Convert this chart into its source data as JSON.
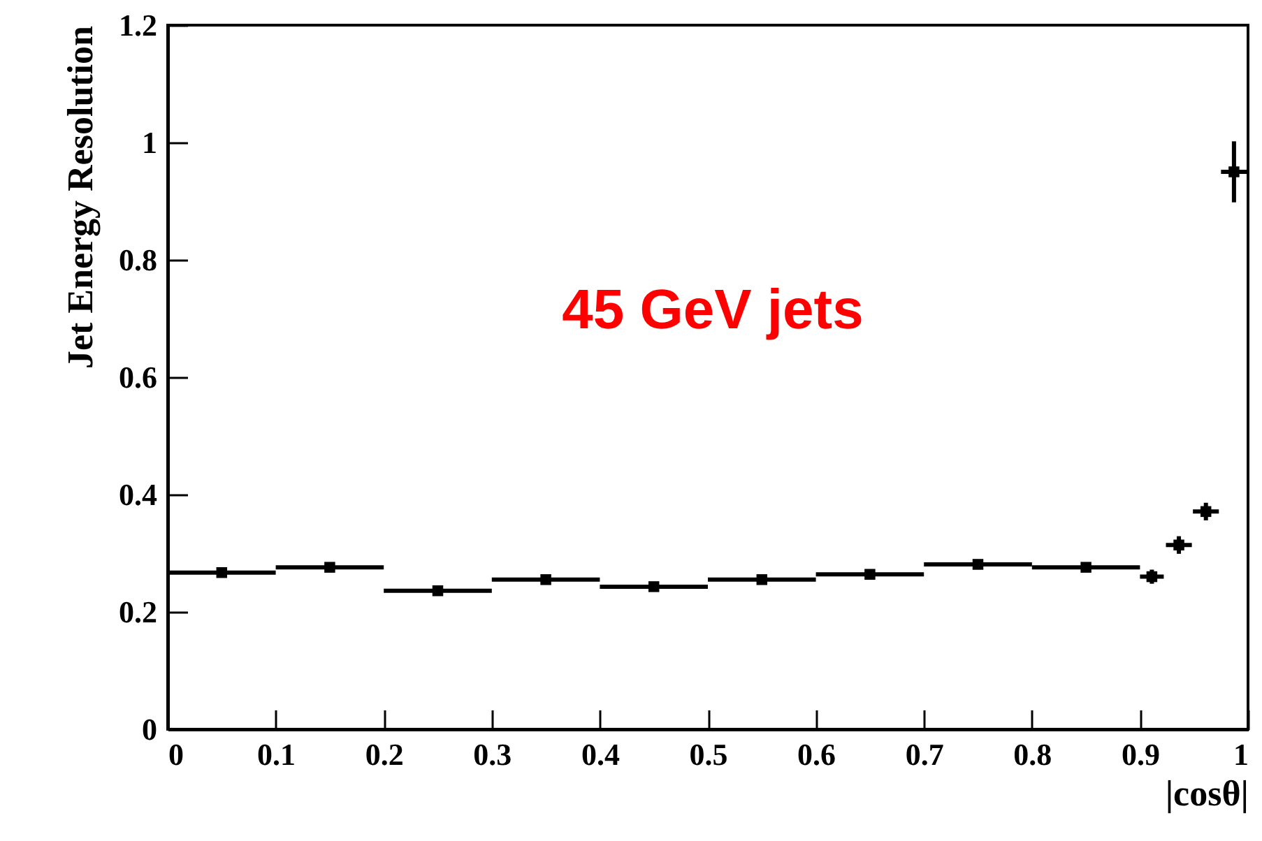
{
  "chart_data": {
    "type": "scatter",
    "xlabel": "|cosθ|",
    "ylabel": "Jet Energy Resolution",
    "annotations": [
      "45 GeV jets"
    ],
    "x": [
      0.05,
      0.15,
      0.25,
      0.35,
      0.45,
      0.55,
      0.65,
      0.75,
      0.85,
      0.911,
      0.936,
      0.961,
      0.987
    ],
    "values": [
      0.267,
      0.276,
      0.236,
      0.255,
      0.243,
      0.255,
      0.264,
      0.281,
      0.276,
      0.26,
      0.314,
      0.371,
      0.95
    ],
    "xerrors": [
      0.05,
      0.05,
      0.05,
      0.05,
      0.05,
      0.05,
      0.05,
      0.05,
      0.05,
      0.011,
      0.012,
      0.012,
      0.012
    ],
    "errors": [
      null,
      null,
      null,
      null,
      null,
      null,
      null,
      null,
      null,
      0.012,
      0.015,
      0.015,
      0.052
    ],
    "color": "#000000",
    "marker": "square",
    "xlim": [
      0,
      1
    ],
    "xticks": [
      0,
      0.1,
      0.2,
      0.3,
      0.4,
      0.5,
      0.6,
      0.7,
      0.8,
      0.9,
      1
    ],
    "ylim": [
      0,
      1.2
    ],
    "yticks": [
      0,
      0.2,
      0.4,
      0.6,
      0.8,
      1,
      1.2
    ],
    "grid": false
  }
}
